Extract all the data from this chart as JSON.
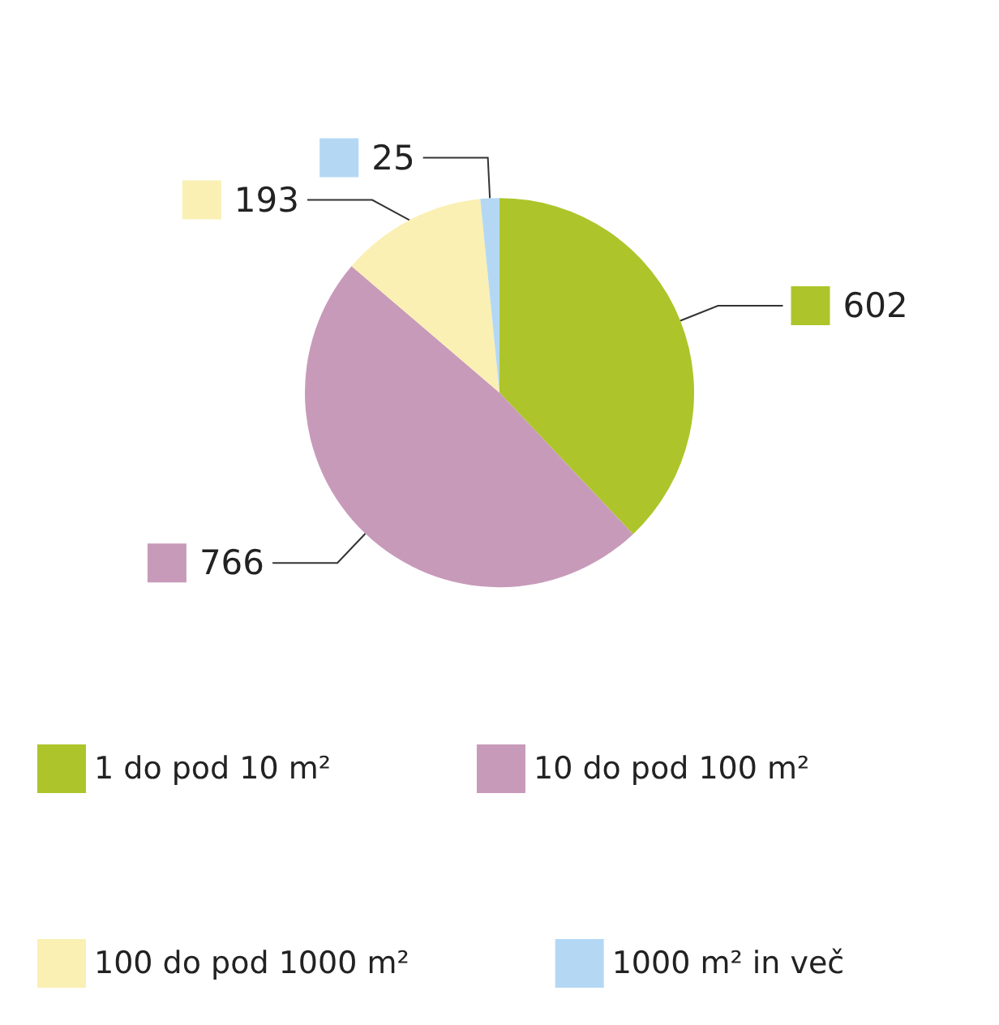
{
  "chart_data": {
    "type": "pie",
    "categories": [
      "1 do pod 10 m²",
      "10 do pod 100 m²",
      "100 do pod 1000 m²",
      "1000 m² in več"
    ],
    "values": [
      602,
      766,
      193,
      25
    ],
    "colors": [
      "#adc52a",
      "#c89aba",
      "#faf0b4",
      "#b4d8f4"
    ],
    "data_labels": true,
    "legend": "bottom"
  }
}
